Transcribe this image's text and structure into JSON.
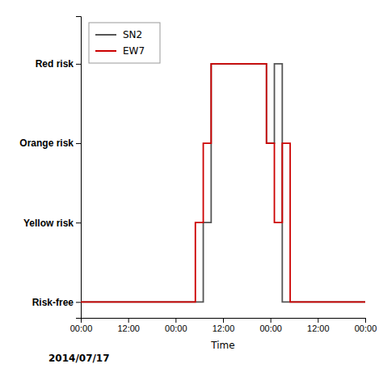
{
  "chart_data": {
    "type": "line",
    "xlabel": "Time",
    "annotations": [
      "2014/07/17"
    ],
    "series": [
      {
        "name": "SN2",
        "color": "#555555",
        "x": [
          0,
          31,
          31,
          33,
          33,
          47,
          47,
          49,
          49,
          51,
          51,
          72
        ],
        "values": [
          0,
          0,
          1,
          1,
          3,
          3,
          2,
          2,
          3,
          3,
          0,
          0
        ]
      },
      {
        "name": "EW7",
        "color": "#cc0000",
        "x": [
          0,
          29,
          29,
          31,
          31,
          33,
          33,
          47,
          47,
          49,
          49,
          51,
          51,
          53,
          53,
          72
        ],
        "values": [
          0,
          0,
          1,
          1,
          2,
          2,
          3,
          3,
          2,
          2,
          1,
          1,
          2,
          2,
          0,
          0
        ]
      }
    ],
    "xlim": [
      0,
      72
    ],
    "xticks": [
      {
        "value": 0,
        "label": "00:00"
      },
      {
        "value": 12,
        "label": "12:00"
      },
      {
        "value": 24,
        "label": "00:00"
      },
      {
        "value": 36,
        "label": "12:00"
      },
      {
        "value": 48,
        "label": "00:00"
      },
      {
        "value": 60,
        "label": "12:00"
      },
      {
        "value": 72,
        "label": "00:00"
      }
    ],
    "ylim": [
      -0.2,
      3.6
    ],
    "yticks": [
      {
        "value": 0,
        "label": "Risk-free"
      },
      {
        "value": 1,
        "label": "Yellow risk"
      },
      {
        "value": 2,
        "label": "Orange risk"
      },
      {
        "value": 3,
        "label": "Red risk"
      }
    ],
    "grid": false,
    "legend": "upper left"
  }
}
